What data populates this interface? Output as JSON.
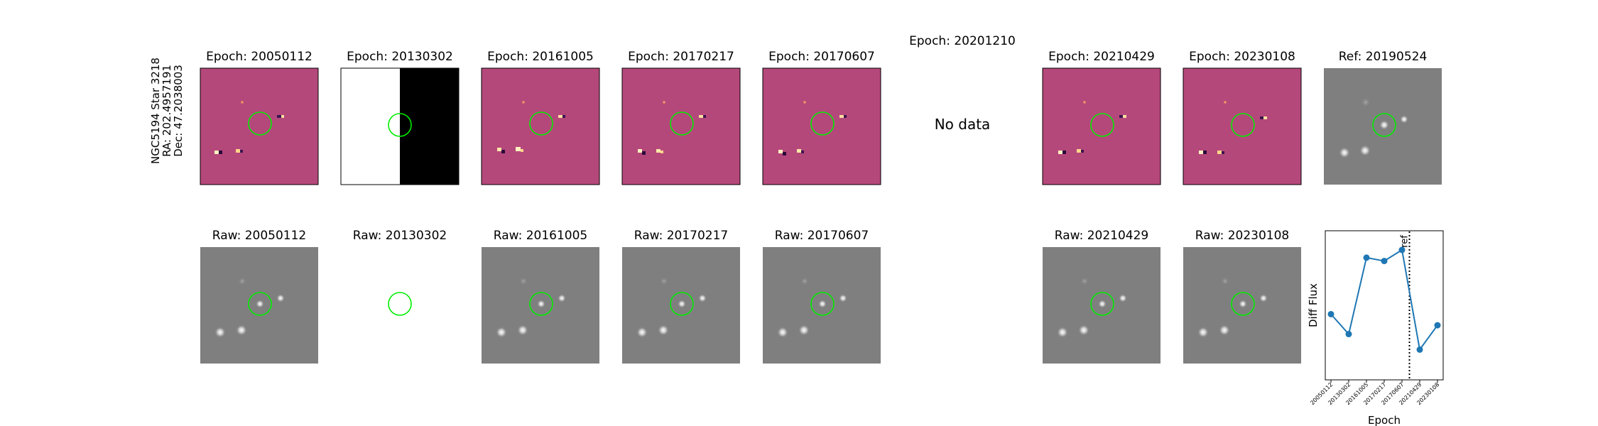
{
  "star_label": {
    "line1": "NGC5194 Star 3218",
    "line2": "RA: 202.4957191",
    "line3": "Dec: 47.2038003"
  },
  "top_titles": [
    "Epoch: 20050112",
    "Epoch: 20130302",
    "Epoch: 20161005",
    "Epoch: 20170217",
    "Epoch: 20170607",
    "Epoch: 20201210",
    "Epoch: 20210429",
    "Epoch: 20230108",
    "Ref: 20190524"
  ],
  "bottom_titles": [
    "Raw: 20050112",
    "Raw: 20130302",
    "Raw: 20161005",
    "Raw: 20170217",
    "Raw: 20170607",
    "Raw: 20210429",
    "Raw: 20230108"
  ],
  "no_data_text": "No data",
  "colors": {
    "diff_bg": "#b5487b",
    "raw_bg": "#7f7f7f",
    "circle": "#00ee00",
    "line": "#1f77b4"
  },
  "chart_data": {
    "type": "line",
    "ylabel": "Diff Flux",
    "xlabel": "Epoch",
    "categories": [
      "20050112",
      "20130302",
      "20161005",
      "20170217",
      "20170607",
      "20210429",
      "20230108"
    ],
    "values": [
      0.42,
      0.24,
      0.93,
      0.9,
      1.0,
      0.1,
      0.32
    ],
    "ref_line": {
      "label": "ref",
      "position_between": [
        "20170607",
        "20210429"
      ]
    }
  }
}
